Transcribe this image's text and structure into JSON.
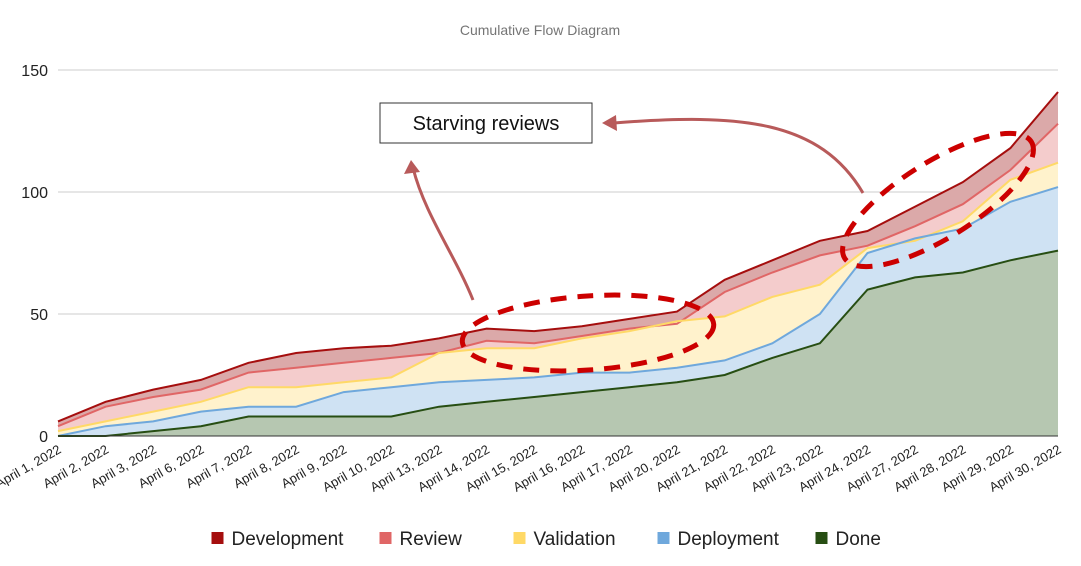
{
  "chart_data": {
    "type": "area",
    "title": "Cumulative Flow Diagram",
    "xlabel": "",
    "ylabel": "",
    "categories": [
      "April 1, 2022",
      "April 2, 2022",
      "April 3, 2022",
      "April 6, 2022",
      "April 7, 2022",
      "April 8, 2022",
      "April 9, 2022",
      "April 10, 2022",
      "April 13, 2022",
      "April 14, 2022",
      "April 15, 2022",
      "April 16, 2022",
      "April 17, 2022",
      "April 20, 2022",
      "April 21, 2022",
      "April 22, 2022",
      "April 23, 2022",
      "April 24, 2022",
      "April 27, 2022",
      "April 28, 2022",
      "April 29, 2022",
      "April 30, 2022"
    ],
    "yticks": [
      "0",
      "50",
      "100",
      "150"
    ],
    "ylim": [
      0,
      150
    ],
    "grid": true,
    "legend_position": "bottom",
    "stacked": false,
    "series": [
      {
        "name": "Development",
        "color": "#a50e0e",
        "fill": "#dba9a9",
        "values": [
          6,
          14,
          19,
          23,
          30,
          34,
          36,
          37,
          40,
          44,
          43,
          45,
          48,
          51,
          64,
          72,
          80,
          84,
          94,
          104,
          118,
          141
        ]
      },
      {
        "name": "Review",
        "color": "#e06666",
        "fill": "#f4cccc",
        "values": [
          4,
          12,
          16,
          19,
          26,
          28,
          30,
          32,
          34,
          39,
          38,
          41,
          44,
          46,
          59,
          67,
          74,
          78,
          86,
          95,
          109,
          128
        ]
      },
      {
        "name": "Validation",
        "color": "#ffd966",
        "fill": "#fff2cc",
        "values": [
          2,
          6,
          10,
          14,
          20,
          20,
          22,
          24,
          34,
          36,
          36,
          40,
          43,
          47,
          49,
          57,
          62,
          77,
          80,
          88,
          105,
          112
        ]
      },
      {
        "name": "Deployment",
        "color": "#6fa8dc",
        "fill": "#cfe2f3",
        "values": [
          0,
          4,
          6,
          10,
          12,
          12,
          18,
          20,
          22,
          23,
          24,
          26,
          26,
          28,
          31,
          38,
          50,
          75,
          81,
          85,
          96,
          102
        ]
      },
      {
        "name": "Done",
        "color": "#274e13",
        "fill": "#b6c7b1",
        "values": [
          0,
          0,
          2,
          4,
          8,
          8,
          8,
          8,
          12,
          14,
          16,
          18,
          20,
          22,
          25,
          32,
          38,
          60,
          65,
          67,
          72,
          76
        ]
      }
    ],
    "annotations": [
      {
        "text": "Starving reviews"
      }
    ]
  }
}
